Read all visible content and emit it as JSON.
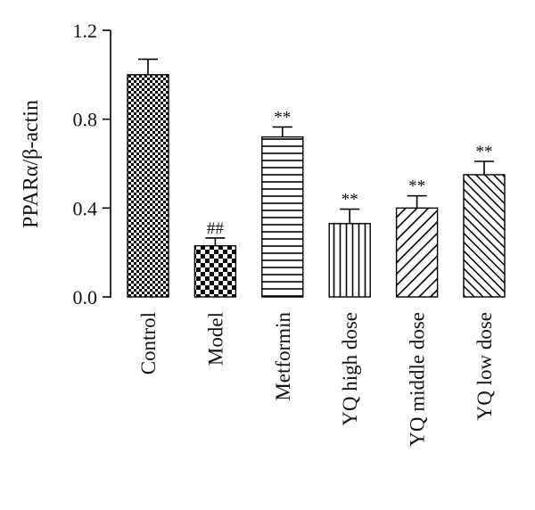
{
  "chart_data": {
    "type": "bar",
    "ylabel": "PPARα/β-actin",
    "ylim": [
      0,
      1.2
    ],
    "yticks": [
      "0.0",
      "0.4",
      "0.8",
      "1.2"
    ],
    "grid": false,
    "legend": "none",
    "categories": [
      "Control",
      "Model",
      "Metformin",
      "YQ high dose",
      "YQ middle dose",
      "YQ low dose"
    ],
    "values": [
      1.0,
      0.23,
      0.72,
      0.33,
      0.4,
      0.55
    ],
    "errors": [
      0.07,
      0.035,
      0.045,
      0.065,
      0.055,
      0.06
    ],
    "annotations": [
      "",
      "##",
      "**",
      "**",
      "**",
      "**"
    ],
    "patterns": [
      "checker-fine",
      "checker-coarse",
      "horizontal",
      "vertical",
      "diagonal",
      "diagonal-dense"
    ],
    "bar_color": "#000000",
    "background": "#ffffff"
  }
}
